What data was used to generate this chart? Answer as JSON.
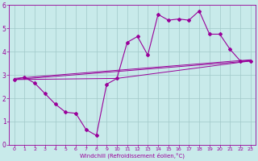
{
  "xlabel": "Windchill (Refroidissement éolien,°C)",
  "xlim": [
    -0.5,
    23.5
  ],
  "ylim": [
    0,
    6
  ],
  "xticks": [
    0,
    1,
    2,
    3,
    4,
    5,
    6,
    7,
    8,
    9,
    10,
    11,
    12,
    13,
    14,
    15,
    16,
    17,
    18,
    19,
    20,
    21,
    22,
    23
  ],
  "yticks": [
    0,
    1,
    2,
    3,
    4,
    5,
    6
  ],
  "bg_color": "#c8eaea",
  "grid_color": "#a0c8c8",
  "line_color": "#990099",
  "series": {
    "line1_x": [
      0,
      1,
      2,
      3,
      4,
      5,
      6,
      7,
      8,
      9,
      10,
      11,
      12,
      13,
      14,
      15,
      16,
      17,
      18,
      19,
      20,
      21,
      22,
      23
    ],
    "line1_y": [
      2.8,
      2.9,
      2.65,
      2.2,
      1.75,
      1.4,
      1.35,
      0.65,
      0.4,
      2.6,
      2.85,
      4.4,
      4.65,
      3.85,
      5.6,
      5.35,
      5.4,
      5.35,
      5.75,
      4.75,
      4.75,
      4.1,
      3.6,
      3.6
    ],
    "line2_x": [
      0,
      23
    ],
    "line2_y": [
      2.8,
      3.6
    ],
    "line3_x": [
      0,
      23
    ],
    "line3_y": [
      2.8,
      3.6
    ],
    "line4_x": [
      0,
      10,
      23
    ],
    "line4_y": [
      2.8,
      2.85,
      3.6
    ]
  }
}
